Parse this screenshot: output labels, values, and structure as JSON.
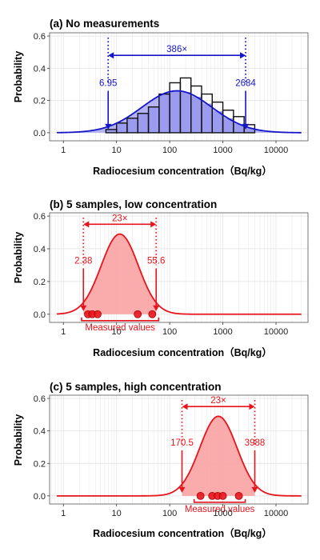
{
  "colors": {
    "blue": "#1515c8",
    "blue_fill": "#9b9bf0",
    "red": "#e8141c",
    "red_fill": "#f9a3a3",
    "grid": "#e6e6e6",
    "panel_border": "#555555"
  },
  "chart_data": [
    {
      "type": "line",
      "title": "(a) No measurements",
      "xlabel": "Radiocesium concentration（Bq/kg）",
      "ylabel": "Probability",
      "x_scale": "log10",
      "xlim": [
        0.55,
        40000
      ],
      "ylim": [
        -0.05,
        0.62
      ],
      "x_ticks": [
        1,
        10,
        100,
        1000,
        10000
      ],
      "x_tick_labels": [
        "1",
        "10",
        "100",
        "1000",
        "10000"
      ],
      "y_ticks": [
        0.0,
        0.2,
        0.4,
        0.6
      ],
      "y_tick_labels": [
        "0.0",
        "0.2",
        "0.4",
        "0.6"
      ],
      "grid": true,
      "histogram": {
        "bin_edges": [
          6.3,
          10,
          15.8,
          25.1,
          39.8,
          63.1,
          100,
          158.5,
          251.2,
          398.1,
          631,
          1000,
          1585,
          2512,
          3981
        ],
        "values": [
          0.02,
          0.06,
          0.09,
          0.12,
          0.16,
          0.24,
          0.31,
          0.34,
          0.29,
          0.24,
          0.19,
          0.14,
          0.1,
          0.05
        ]
      },
      "curve": {
        "distribution": "lognormal",
        "center": 136.6,
        "peak": 0.26,
        "fill": true
      },
      "interval": {
        "lower": 6.95,
        "upper": 2684,
        "lower_label": "6.95",
        "upper_label": "2684",
        "ratio_label": "386×",
        "arrow_y": 0.48
      },
      "x_range_curve": [
        0.75,
        30000
      ]
    },
    {
      "type": "line",
      "title": "(b) 5 samples, low concentration",
      "xlabel": "Radiocesium concentration（Bq/kg）",
      "ylabel": "Probability",
      "x_scale": "log10",
      "xlim": [
        0.55,
        40000
      ],
      "ylim": [
        -0.05,
        0.62
      ],
      "x_ticks": [
        1,
        10,
        100,
        1000,
        10000
      ],
      "x_tick_labels": [
        "1",
        "10",
        "100",
        "1000",
        "10000"
      ],
      "y_ticks": [
        0.0,
        0.2,
        0.4,
        0.6
      ],
      "y_tick_labels": [
        "0.0",
        "0.2",
        "0.4",
        "0.6"
      ],
      "grid": true,
      "curve": {
        "distribution": "lognormal",
        "center": 11.5,
        "peak": 0.49,
        "fill_between": [
          2.38,
          55.6
        ]
      },
      "interval": {
        "lower": 2.38,
        "upper": 55.6,
        "lower_label": "2.38",
        "upper_label": "55.6",
        "ratio_label": "23×",
        "arrow_y": 0.55
      },
      "measured_points": [
        2.9,
        3.5,
        4.4,
        25,
        47
      ],
      "measured_label": "Measured values",
      "x_range_curve": [
        0.75,
        30000
      ]
    },
    {
      "type": "line",
      "title": "(c) 5 samples, high concentration",
      "xlabel": "Radiocesium concentration（Bq/kg）",
      "ylabel": "Probability",
      "x_scale": "log10",
      "xlim": [
        0.55,
        40000
      ],
      "ylim": [
        -0.05,
        0.62
      ],
      "x_ticks": [
        1,
        10,
        100,
        1000,
        10000
      ],
      "x_tick_labels": [
        "1",
        "10",
        "100",
        "1000",
        "10000"
      ],
      "y_ticks": [
        0.0,
        0.2,
        0.4,
        0.6
      ],
      "y_tick_labels": [
        "0.0",
        "0.2",
        "0.4",
        "0.6"
      ],
      "grid": true,
      "curve": {
        "distribution": "lognormal",
        "center": 824.6,
        "peak": 0.49,
        "fill_between": [
          170.5,
          3988
        ]
      },
      "interval": {
        "lower": 170.5,
        "upper": 3988,
        "lower_label": "170.5",
        "upper_label": "3988",
        "ratio_label": "23×",
        "arrow_y": 0.55
      },
      "measured_points": [
        380,
        630,
        800,
        1000,
        2000
      ],
      "measured_label": "Measured values",
      "x_range_curve": [
        0.75,
        30000
      ]
    }
  ]
}
